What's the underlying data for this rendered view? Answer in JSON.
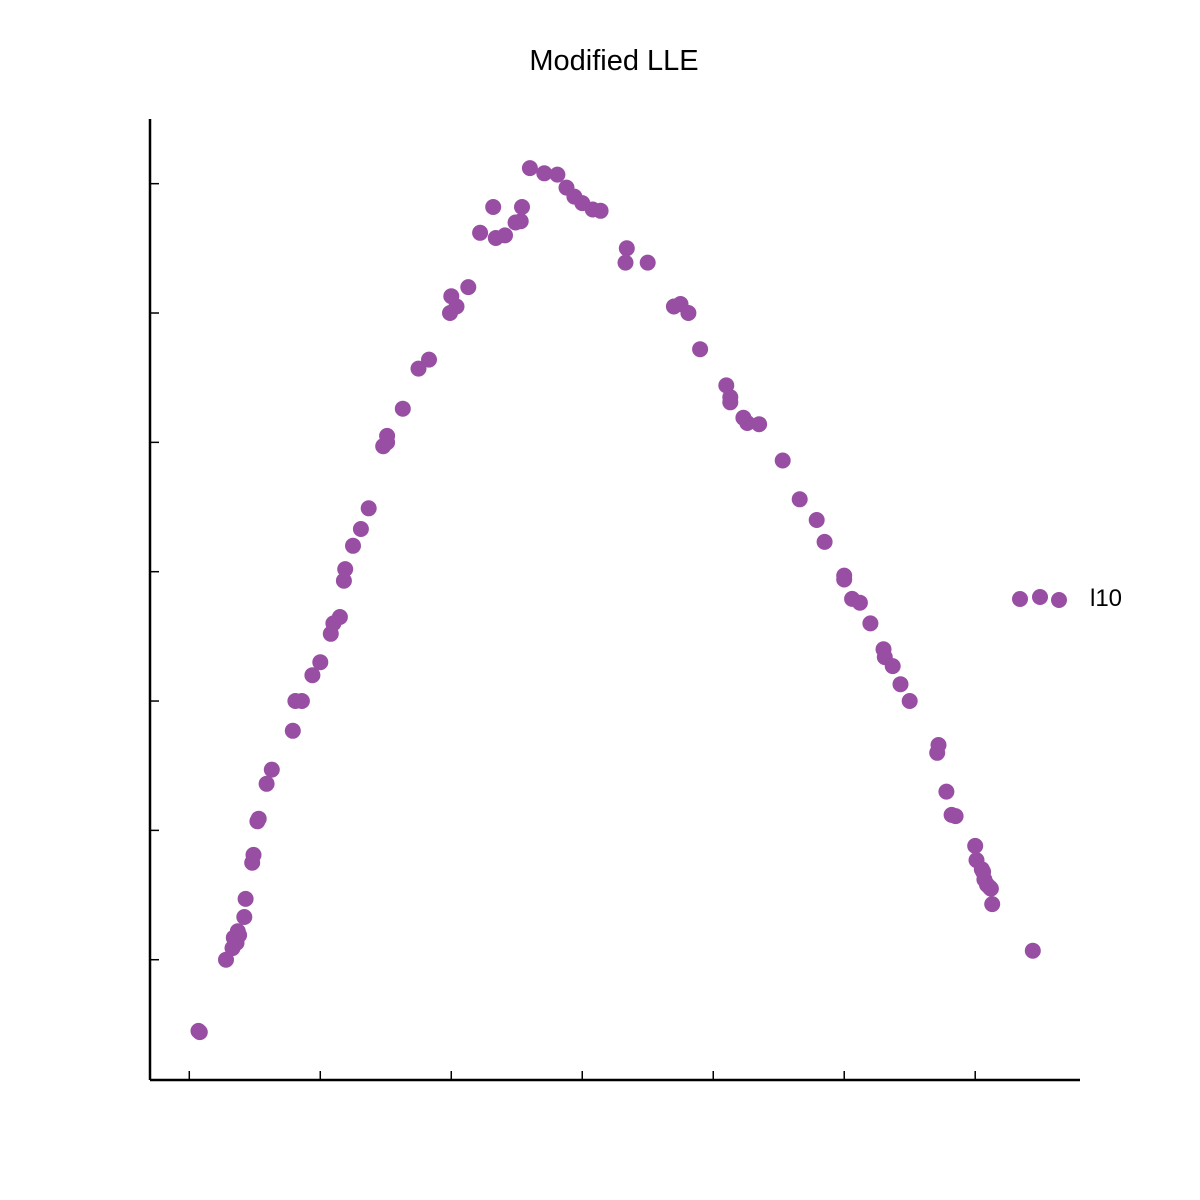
{
  "chart_data": {
    "type": "scatter",
    "title": "Modified LLE",
    "xlabel": "",
    "ylabel": "",
    "grid": false,
    "legend_placement": "right",
    "x_ticks_shown": true,
    "y_ticks_shown": true,
    "tick_labels_shown": false,
    "xlim": [
      -0.3,
      6.8
    ],
    "ylim": [
      -0.93,
      6.5
    ],
    "x_ticks": [
      0,
      1,
      2,
      3,
      4,
      5,
      6
    ],
    "y_ticks": [
      0,
      1,
      2,
      3,
      4,
      5,
      6
    ],
    "series": [
      {
        "name": "l10",
        "color": "#984ea3",
        "points": [
          [
            0.07,
            -0.55
          ],
          [
            0.08,
            -0.56
          ],
          [
            0.28,
            0.0
          ],
          [
            0.33,
            0.09
          ],
          [
            0.34,
            0.17
          ],
          [
            0.36,
            0.13
          ],
          [
            0.37,
            0.22
          ],
          [
            0.38,
            0.19
          ],
          [
            0.42,
            0.33
          ],
          [
            0.43,
            0.47
          ],
          [
            0.48,
            0.75
          ],
          [
            0.49,
            0.81
          ],
          [
            0.52,
            1.07
          ],
          [
            0.53,
            1.09
          ],
          [
            0.59,
            1.36
          ],
          [
            0.63,
            1.47
          ],
          [
            0.79,
            1.77
          ],
          [
            0.81,
            2.0
          ],
          [
            0.86,
            2.0
          ],
          [
            0.94,
            2.2
          ],
          [
            1.0,
            2.3
          ],
          [
            1.08,
            2.52
          ],
          [
            1.1,
            2.6
          ],
          [
            1.15,
            2.65
          ],
          [
            1.18,
            2.93
          ],
          [
            1.19,
            3.02
          ],
          [
            1.25,
            3.2
          ],
          [
            1.31,
            3.33
          ],
          [
            1.37,
            3.49
          ],
          [
            1.48,
            3.97
          ],
          [
            1.51,
            4.05
          ],
          [
            1.51,
            4.0
          ],
          [
            1.63,
            4.26
          ],
          [
            1.75,
            4.57
          ],
          [
            1.83,
            4.64
          ],
          [
            1.99,
            5.0
          ],
          [
            2.04,
            5.05
          ],
          [
            2.13,
            5.2
          ],
          [
            2.0,
            5.13
          ],
          [
            2.22,
            5.62
          ],
          [
            2.32,
            5.82
          ],
          [
            2.34,
            5.58
          ],
          [
            2.41,
            5.6
          ],
          [
            2.49,
            5.7
          ],
          [
            2.53,
            5.71
          ],
          [
            2.54,
            5.82
          ],
          [
            2.6,
            6.12
          ],
          [
            2.71,
            6.08
          ],
          [
            2.81,
            6.07
          ],
          [
            2.88,
            5.97
          ],
          [
            2.94,
            5.9
          ],
          [
            3.0,
            5.85
          ],
          [
            3.08,
            5.8
          ],
          [
            3.14,
            5.79
          ],
          [
            3.34,
            5.5
          ],
          [
            3.33,
            5.39
          ],
          [
            3.5,
            5.39
          ],
          [
            3.7,
            5.05
          ],
          [
            3.75,
            5.07
          ],
          [
            3.81,
            5.0
          ],
          [
            3.9,
            4.72
          ],
          [
            4.1,
            4.44
          ],
          [
            4.13,
            4.35
          ],
          [
            4.13,
            4.31
          ],
          [
            4.23,
            4.19
          ],
          [
            4.26,
            4.15
          ],
          [
            4.35,
            4.14
          ],
          [
            4.53,
            3.86
          ],
          [
            4.66,
            3.56
          ],
          [
            4.79,
            3.4
          ],
          [
            4.85,
            3.23
          ],
          [
            5.0,
            2.97
          ],
          [
            5.0,
            2.94
          ],
          [
            5.06,
            2.79
          ],
          [
            5.12,
            2.76
          ],
          [
            5.2,
            2.6
          ],
          [
            5.3,
            2.4
          ],
          [
            5.31,
            2.34
          ],
          [
            5.37,
            2.27
          ],
          [
            5.43,
            2.13
          ],
          [
            5.5,
            2.0
          ],
          [
            5.72,
            1.66
          ],
          [
            5.71,
            1.6
          ],
          [
            5.78,
            1.3
          ],
          [
            5.82,
            1.12
          ],
          [
            5.85,
            1.11
          ],
          [
            6.0,
            0.88
          ],
          [
            6.01,
            0.77
          ],
          [
            6.05,
            0.7
          ],
          [
            6.06,
            0.68
          ],
          [
            6.07,
            0.62
          ],
          [
            6.09,
            0.58
          ],
          [
            6.11,
            0.56
          ],
          [
            6.12,
            0.55
          ],
          [
            6.13,
            0.43
          ],
          [
            6.44,
            0.07
          ]
        ]
      }
    ]
  }
}
